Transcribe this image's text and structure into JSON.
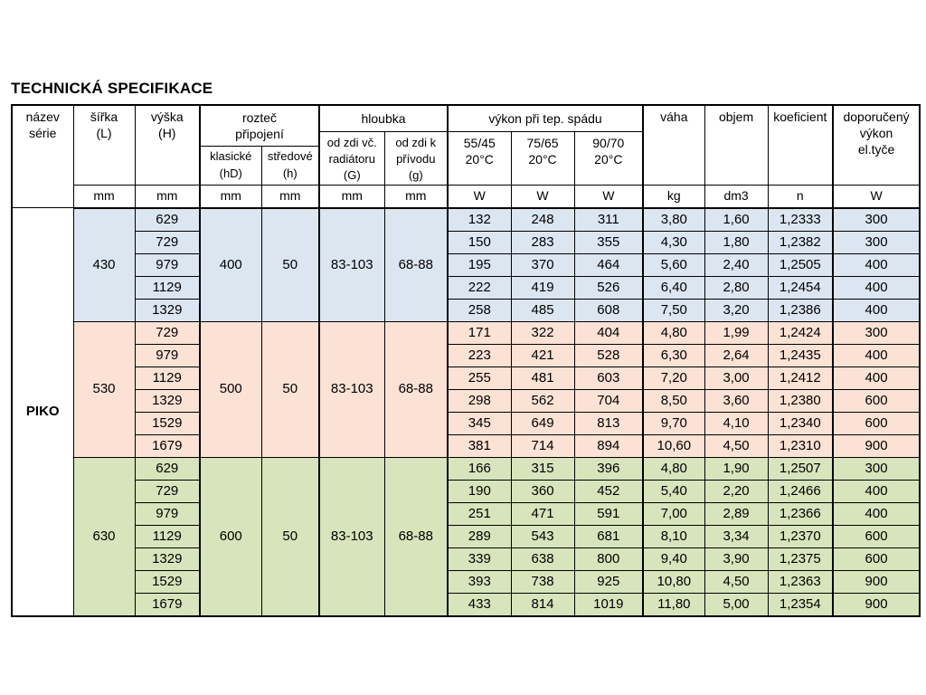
{
  "title": "TECHNICKÁ SPECIFIKACE",
  "series_name": "PIKO",
  "colors": {
    "blue": "#dce6f1",
    "salmon": "#fbe2d5",
    "green": "#d8e4bc"
  },
  "header": {
    "nazev_serie": "název\nsérie",
    "sirka": "šířka\n(L)",
    "vyska": "výška\n(H)",
    "roztec_pripojeni": "rozteč\npřipojení",
    "klasicke": "klasické\n(hD)",
    "stredove": "středové\n(h)",
    "hloubka": "hloubka",
    "od_zdi_vc": "od zdi vč.\nradiátoru\n(G)",
    "od_zdi_k": "od zdi k\npřívodu\n(g)",
    "vykon": "výkon při tep.  spádu",
    "t5545": "55/45\n20°C",
    "t7565": "75/65\n20°C",
    "t9070": "90/70\n20°C",
    "vaha": "váha",
    "objem": "objem",
    "koeficient": "koeficient",
    "doporuceny": "doporučený\nvýkon\nel.tyče"
  },
  "units": [
    "mm",
    "mm",
    "mm",
    "mm",
    "mm",
    "mm",
    "W",
    "W",
    "W",
    "kg",
    "dm3",
    "n",
    "W"
  ],
  "groups": [
    {
      "color": "blue",
      "sirka": "430",
      "klasicke": "400",
      "stredove": "50",
      "hloubka_g": "83-103",
      "hloubka_g2": "68-88",
      "rows": [
        {
          "vyska": "629",
          "w5545": "132",
          "w7565": "248",
          "w9070": "311",
          "vaha": "3,80",
          "objem": "1,60",
          "koeficient": "1,2333",
          "doporuceny": "300"
        },
        {
          "vyska": "729",
          "w5545": "150",
          "w7565": "283",
          "w9070": "355",
          "vaha": "4,30",
          "objem": "1,80",
          "koeficient": "1,2382",
          "doporuceny": "300"
        },
        {
          "vyska": "979",
          "w5545": "195",
          "w7565": "370",
          "w9070": "464",
          "vaha": "5,60",
          "objem": "2,40",
          "koeficient": "1,2505",
          "doporuceny": "400"
        },
        {
          "vyska": "1129",
          "w5545": "222",
          "w7565": "419",
          "w9070": "526",
          "vaha": "6,40",
          "objem": "2,80",
          "koeficient": "1,2454",
          "doporuceny": "400"
        },
        {
          "vyska": "1329",
          "w5545": "258",
          "w7565": "485",
          "w9070": "608",
          "vaha": "7,50",
          "objem": "3,20",
          "koeficient": "1,2386",
          "doporuceny": "400"
        }
      ]
    },
    {
      "color": "salmon",
      "sirka": "530",
      "klasicke": "500",
      "stredove": "50",
      "hloubka_g": "83-103",
      "hloubka_g2": "68-88",
      "rows": [
        {
          "vyska": "729",
          "w5545": "171",
          "w7565": "322",
          "w9070": "404",
          "vaha": "4,80",
          "objem": "1,99",
          "koeficient": "1,2424",
          "doporuceny": "300"
        },
        {
          "vyska": "979",
          "w5545": "223",
          "w7565": "421",
          "w9070": "528",
          "vaha": "6,30",
          "objem": "2,64",
          "koeficient": "1,2435",
          "doporuceny": "400"
        },
        {
          "vyska": "1129",
          "w5545": "255",
          "w7565": "481",
          "w9070": "603",
          "vaha": "7,20",
          "objem": "3,00",
          "koeficient": "1,2412",
          "doporuceny": "400"
        },
        {
          "vyska": "1329",
          "w5545": "298",
          "w7565": "562",
          "w9070": "704",
          "vaha": "8,50",
          "objem": "3,60",
          "koeficient": "1,2380",
          "doporuceny": "600"
        },
        {
          "vyska": "1529",
          "w5545": "345",
          "w7565": "649",
          "w9070": "813",
          "vaha": "9,70",
          "objem": "4,10",
          "koeficient": "1,2340",
          "doporuceny": "600"
        },
        {
          "vyska": "1679",
          "w5545": "381",
          "w7565": "714",
          "w9070": "894",
          "vaha": "10,60",
          "objem": "4,50",
          "koeficient": "1,2310",
          "doporuceny": "900"
        }
      ]
    },
    {
      "color": "green",
      "sirka": "630",
      "klasicke": "600",
      "stredove": "50",
      "hloubka_g": "83-103",
      "hloubka_g2": "68-88",
      "rows": [
        {
          "vyska": "629",
          "w5545": "166",
          "w7565": "315",
          "w9070": "396",
          "vaha": "4,80",
          "objem": "1,90",
          "koeficient": "1,2507",
          "doporuceny": "300"
        },
        {
          "vyska": "729",
          "w5545": "190",
          "w7565": "360",
          "w9070": "452",
          "vaha": "5,40",
          "objem": "2,20",
          "koeficient": "1,2466",
          "doporuceny": "400"
        },
        {
          "vyska": "979",
          "w5545": "251",
          "w7565": "471",
          "w9070": "591",
          "vaha": "7,00",
          "objem": "2,89",
          "koeficient": "1,2366",
          "doporuceny": "400"
        },
        {
          "vyska": "1129",
          "w5545": "289",
          "w7565": "543",
          "w9070": "681",
          "vaha": "8,10",
          "objem": "3,34",
          "koeficient": "1,2370",
          "doporuceny": "600"
        },
        {
          "vyska": "1329",
          "w5545": "339",
          "w7565": "638",
          "w9070": "800",
          "vaha": "9,40",
          "objem": "3,90",
          "koeficient": "1,2375",
          "doporuceny": "600"
        },
        {
          "vyska": "1529",
          "w5545": "393",
          "w7565": "738",
          "w9070": "925",
          "vaha": "10,80",
          "objem": "4,50",
          "koeficient": "1,2363",
          "doporuceny": "900"
        },
        {
          "vyska": "1679",
          "w5545": "433",
          "w7565": "814",
          "w9070": "1019",
          "vaha": "11,80",
          "objem": "5,00",
          "koeficient": "1,2354",
          "doporuceny": "900"
        }
      ]
    }
  ]
}
